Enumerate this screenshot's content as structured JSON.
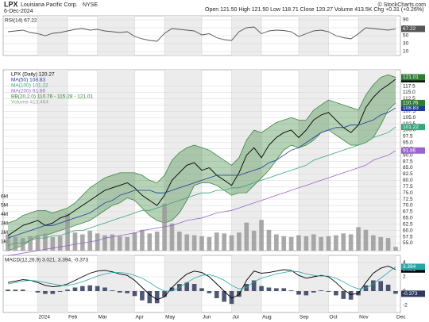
{
  "header": {
    "symbol": "LPX",
    "name": "Louisiana Pacific Corp.",
    "exchange": "NYSE",
    "date": "6-Dec-2024",
    "quote": "Open 121.50 High 121.50 Low 118.71 Close 120.27 Volume 413.5K Chg +0.31 (+0.26%)",
    "credit": "© StockCharts.com"
  },
  "chart_data": [
    {
      "type": "line",
      "title": "RSI(14) 67.22",
      "series": [
        {
          "color": "#555555",
          "values": [
            60,
            62,
            64,
            58,
            55,
            50,
            56,
            58,
            62,
            66,
            68,
            64,
            66,
            62,
            60,
            58,
            60,
            48,
            42,
            38,
            36,
            56,
            68,
            66,
            64,
            62,
            52,
            55,
            45,
            40,
            38,
            60,
            70,
            72,
            55,
            62,
            64,
            63,
            60,
            48,
            55,
            62,
            64,
            60,
            50,
            45,
            42,
            55,
            70,
            68,
            66,
            64,
            67.22
          ]
        }
      ],
      "ylim": [
        0,
        100
      ],
      "yticks": [
        10,
        30,
        50,
        70,
        90
      ],
      "grid": true
    },
    {
      "type": "line",
      "categories": [
        null,
        null,
        null,
        null,
        "2024",
        null,
        null,
        null,
        "Feb",
        null,
        null,
        null,
        "Mar",
        null,
        null,
        null,
        null,
        "Apr",
        null,
        null,
        null,
        "May",
        null,
        null,
        null,
        null,
        "Jun",
        null,
        null,
        null,
        "Jul",
        null,
        null,
        null,
        "Aug",
        null,
        null,
        null,
        null,
        "Sep",
        null,
        null,
        null,
        "Oct",
        null,
        null,
        null,
        "Nov",
        null,
        null,
        null,
        null,
        "Dec"
      ],
      "series": [
        {
          "name": "LPX (Daily) 120.27",
          "color": "#000000",
          "values": [
            58,
            60,
            62,
            63,
            64,
            62,
            63,
            65,
            66,
            68,
            70,
            72,
            74,
            76,
            77,
            78,
            79,
            77,
            74,
            72,
            70,
            74,
            80,
            83,
            86,
            87,
            84,
            85,
            82,
            80,
            78,
            83,
            90,
            93,
            89,
            94,
            97,
            99,
            100,
            97,
            100,
            104,
            106,
            107,
            104,
            101,
            99,
            102,
            109,
            113,
            116,
            118,
            120.27
          ]
        },
        {
          "name": "MA(50) 108.83",
          "color": "#1f3b9a",
          "values": [
            57,
            58,
            59,
            60,
            61,
            62,
            62,
            63,
            64,
            65,
            66,
            67,
            69,
            71,
            72,
            74,
            75,
            76,
            76,
            76,
            75,
            75,
            76,
            77,
            78,
            79,
            80,
            81,
            82,
            82,
            82,
            82,
            83,
            84,
            85,
            87,
            88,
            90,
            92,
            93,
            95,
            97,
            99,
            100,
            101,
            101,
            102,
            102,
            103,
            104,
            106,
            107,
            108.83
          ]
        },
        {
          "name": "MA(100) 101.22",
          "color": "#3aa57a",
          "values": [
            54,
            55,
            55,
            56,
            57,
            57,
            58,
            58,
            59,
            60,
            60,
            61,
            62,
            63,
            64,
            65,
            66,
            67,
            68,
            68,
            69,
            70,
            71,
            72,
            73,
            74,
            75,
            75,
            76,
            76,
            77,
            77,
            78,
            79,
            80,
            81,
            82,
            83,
            84,
            85,
            86,
            88,
            89,
            90,
            91,
            92,
            93,
            94,
            95,
            97,
            98,
            99,
            101.22
          ]
        },
        {
          "name": "MA(200) 91.86",
          "color": "#9966cc",
          "values": [
            50,
            50.5,
            51,
            51.5,
            52,
            52.5,
            53,
            53.5,
            54,
            54.5,
            55,
            55.5,
            56,
            57,
            57.5,
            58,
            58.5,
            59,
            60,
            60.5,
            61,
            61.5,
            62,
            63,
            64,
            64.5,
            65,
            66,
            67,
            67.5,
            68,
            69,
            70,
            71,
            72,
            73,
            74,
            75,
            76,
            77,
            78,
            79,
            80,
            81,
            82,
            83,
            84,
            85,
            86,
            88,
            89,
            90,
            91.86
          ]
        },
        {
          "name": "BB(20,2.0) 110.76 - 115.28 - 121.01",
          "kind": "band",
          "color": "#2e7d32",
          "values": [
            63,
            64,
            66,
            67,
            68,
            68,
            67,
            68,
            69,
            71,
            74,
            77,
            79,
            81,
            82,
            83,
            83,
            83,
            82,
            80,
            79,
            82,
            88,
            91,
            93,
            94,
            93,
            92,
            90,
            88,
            86,
            89,
            96,
            100,
            99,
            101,
            103,
            104,
            105,
            104,
            104,
            108,
            110,
            112,
            111,
            110,
            109,
            108,
            114,
            118,
            121,
            122,
            121.01
          ],
          "lower": [
            52,
            53,
            54,
            56,
            58,
            58,
            59,
            60,
            61,
            62,
            63,
            64,
            66,
            68,
            70,
            71,
            73,
            72,
            69,
            66,
            64,
            63,
            64,
            67,
            72,
            78,
            79,
            79,
            78,
            76,
            74,
            75,
            75,
            78,
            81,
            84,
            88,
            92,
            94,
            93,
            94,
            96,
            99,
            100,
            98,
            96,
            94,
            94,
            95,
            97,
            102,
            108,
            110.76
          ]
        },
        {
          "name": "Volume 413,464",
          "kind": "bar",
          "axis": "y2",
          "color": "#9a9a9a",
          "values": [
            1800000,
            1500000,
            1400000,
            1600000,
            1700000,
            1900000,
            1500000,
            1600000,
            4100000,
            2000000,
            1800000,
            2200000,
            1900000,
            1700000,
            1800000,
            1600000,
            1500000,
            2000000,
            2300000,
            1900000,
            2100000,
            5200000,
            3000000,
            2100000,
            1800000,
            1700000,
            1600000,
            1500000,
            2000000,
            1900000,
            1700000,
            2000000,
            3100000,
            2200000,
            3400000,
            2300000,
            1800000,
            1600000,
            1500000,
            1700000,
            1600000,
            1800000,
            1500000,
            1600000,
            1700000,
            1900000,
            1800000,
            2600000,
            2300000,
            1700000,
            1500000,
            1400000,
            413464
          ]
        }
      ],
      "ylim": [
        52,
        124
      ],
      "yticks": [
        {
          "value": 55,
          "label": "55.0"
        },
        57.5,
        {
          "value": 60,
          "label": "60.0"
        },
        62.5,
        {
          "value": 65,
          "label": "65.0"
        },
        67.5,
        {
          "value": 70,
          "label": "70.0"
        },
        72.5,
        {
          "value": 75,
          "label": "75.0"
        },
        77.5,
        {
          "value": 80,
          "label": "80.0"
        },
        82.5,
        {
          "value": 85,
          "label": "85.0"
        },
        87.5,
        {
          "value": 90,
          "label": "90.0"
        },
        92.5,
        {
          "value": 95,
          "label": "95.0"
        },
        97.5,
        {
          "value": 100,
          "label": "100.0"
        },
        102.5,
        {
          "value": 105,
          "label": "105.0"
        },
        107.5,
        {
          "value": 110,
          "label": "110.0"
        },
        112.5,
        {
          "value": 115,
          "label": "115.0"
        },
        117.5
      ],
      "y2lim": [
        0,
        20000000
      ],
      "y2ticks": [
        {
          "value": 1000000,
          "label": "1M"
        },
        {
          "value": 2000000,
          "label": "2M"
        },
        {
          "value": 3000000,
          "label": "3M"
        },
        {
          "value": 4000000,
          "label": "4M"
        },
        {
          "value": 5000000,
          "label": "5M"
        },
        {
          "value": 6000000,
          "label": "6M"
        }
      ],
      "grid": true
    },
    {
      "type": "line",
      "title": "MACD(12,26,9) 3.021, 3.394, -0.373",
      "series": [
        {
          "color": "#000000",
          "values": [
            1.2,
            1.4,
            1.6,
            1.5,
            1.2,
            0.8,
            0.6,
            0.7,
            1.0,
            1.5,
            2.0,
            2.5,
            2.8,
            2.9,
            2.7,
            2.4,
            2.2,
            1.5,
            0.5,
            -0.5,
            -1.2,
            -0.8,
            0.5,
            1.5,
            2.4,
            2.8,
            2.6,
            2.0,
            1.0,
            0.0,
            -1.0,
            -0.5,
            1.5,
            2.8,
            2.5,
            2.6,
            2.8,
            3.0,
            2.9,
            2.2,
            1.8,
            2.0,
            2.2,
            2.0,
            1.2,
            0.2,
            -0.5,
            -0.3,
            1.2,
            2.5,
            3.2,
            3.5,
            3.021
          ]
        },
        {
          "color": "#26a6a6",
          "values": [
            1.0,
            1.2,
            1.4,
            1.5,
            1.4,
            1.2,
            1.0,
            0.8,
            0.8,
            1.0,
            1.3,
            1.7,
            2.1,
            2.4,
            2.6,
            2.6,
            2.5,
            2.2,
            1.8,
            1.2,
            0.5,
            0.0,
            0.0,
            0.5,
            1.2,
            1.8,
            2.2,
            2.3,
            2.0,
            1.5,
            0.8,
            0.3,
            0.5,
            1.3,
            1.8,
            2.1,
            2.4,
            2.6,
            2.8,
            2.7,
            2.4,
            2.2,
            2.1,
            2.1,
            1.8,
            1.3,
            0.7,
            0.3,
            0.4,
            1.0,
            1.8,
            2.6,
            3.394
          ]
        },
        {
          "kind": "bar",
          "color": "#2f3a5c",
          "values": [
            0.2,
            0.2,
            0.2,
            0.0,
            -0.2,
            -0.4,
            -0.4,
            -0.1,
            0.2,
            0.5,
            0.7,
            0.8,
            0.7,
            0.5,
            0.1,
            -0.2,
            -0.3,
            -0.7,
            -1.3,
            -1.7,
            -1.7,
            -0.8,
            0.5,
            1.0,
            1.2,
            1.0,
            0.4,
            -0.3,
            -1.0,
            -1.5,
            -1.8,
            -0.8,
            1.0,
            1.5,
            0.7,
            0.5,
            0.4,
            0.4,
            0.1,
            -0.5,
            -0.6,
            -0.2,
            0.1,
            -0.1,
            -0.6,
            -1.1,
            -1.2,
            -0.6,
            0.8,
            1.5,
            1.4,
            0.9,
            -0.373
          ]
        }
      ],
      "ylim": [
        -3,
        5
      ],
      "yticks": [
        -2,
        0,
        2,
        4
      ],
      "grid": true
    }
  ]
}
